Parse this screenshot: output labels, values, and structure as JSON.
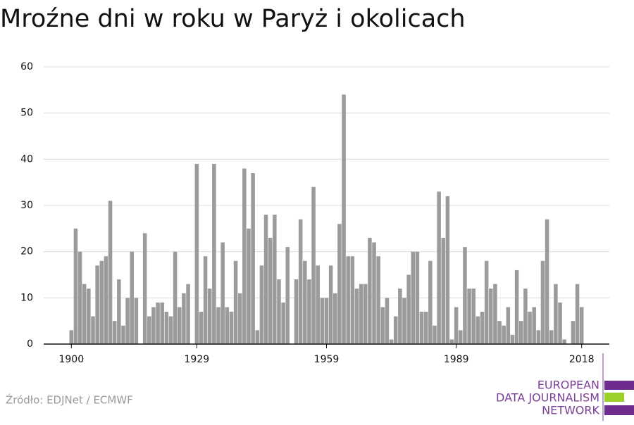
{
  "chart_data": {
    "type": "bar",
    "title": "Mroźne dni w roku w Paryż i okolicach",
    "x": [
      1900,
      1901,
      1902,
      1903,
      1904,
      1905,
      1906,
      1907,
      1908,
      1909,
      1910,
      1911,
      1912,
      1913,
      1914,
      1915,
      1916,
      1917,
      1918,
      1919,
      1920,
      1921,
      1922,
      1923,
      1924,
      1925,
      1926,
      1927,
      1928,
      1929,
      1930,
      1931,
      1932,
      1933,
      1934,
      1935,
      1936,
      1937,
      1938,
      1939,
      1940,
      1941,
      1942,
      1943,
      1944,
      1945,
      1946,
      1947,
      1948,
      1949,
      1950,
      1951,
      1952,
      1953,
      1954,
      1955,
      1956,
      1957,
      1958,
      1959,
      1960,
      1961,
      1962,
      1963,
      1964,
      1965,
      1966,
      1967,
      1968,
      1969,
      1970,
      1971,
      1972,
      1973,
      1974,
      1975,
      1976,
      1977,
      1978,
      1979,
      1980,
      1981,
      1982,
      1983,
      1984,
      1985,
      1986,
      1987,
      1988,
      1989,
      1990,
      1991,
      1992,
      1993,
      1994,
      1995,
      1996,
      1997,
      1998,
      1999,
      2000,
      2001,
      2002,
      2003,
      2004,
      2005,
      2006,
      2007,
      2008,
      2009,
      2010,
      2011,
      2012,
      2013,
      2014,
      2015,
      2016,
      2017,
      2018
    ],
    "values": [
      3,
      25,
      20,
      13,
      12,
      6,
      17,
      18,
      19,
      31,
      5,
      14,
      4,
      10,
      20,
      10,
      0,
      24,
      6,
      8,
      9,
      9,
      7,
      6,
      20,
      8,
      11,
      13,
      0,
      39,
      7,
      19,
      12,
      39,
      8,
      22,
      8,
      7,
      18,
      11,
      38,
      25,
      37,
      3,
      17,
      28,
      23,
      28,
      14,
      9,
      21,
      0,
      14,
      27,
      18,
      14,
      34,
      17,
      10,
      10,
      17,
      11,
      26,
      54,
      19,
      19,
      12,
      13,
      13,
      23,
      22,
      19,
      8,
      10,
      1,
      6,
      12,
      10,
      15,
      20,
      20,
      7,
      7,
      18,
      4,
      33,
      23,
      32,
      1,
      8,
      3,
      21,
      12,
      12,
      6,
      7,
      18,
      12,
      13,
      5,
      4,
      8,
      2,
      16,
      5,
      12,
      7,
      8,
      3,
      18,
      27,
      3,
      13,
      9,
      1,
      0,
      5,
      13,
      8
    ],
    "color": "#9b9b9b",
    "xlim": [
      1893.6,
      2024.4
    ],
    "xticks": [
      1900,
      1929,
      1959,
      1989,
      2018
    ],
    "ylim": [
      0,
      60
    ],
    "yticks": [
      0,
      10,
      20,
      30,
      40,
      50,
      60
    ],
    "grid": true,
    "source": "Źródło: EDJNet / ECMWF",
    "logo": [
      "EUROPEAN",
      "DATA JOURNALISM",
      "NETWORK"
    ]
  }
}
